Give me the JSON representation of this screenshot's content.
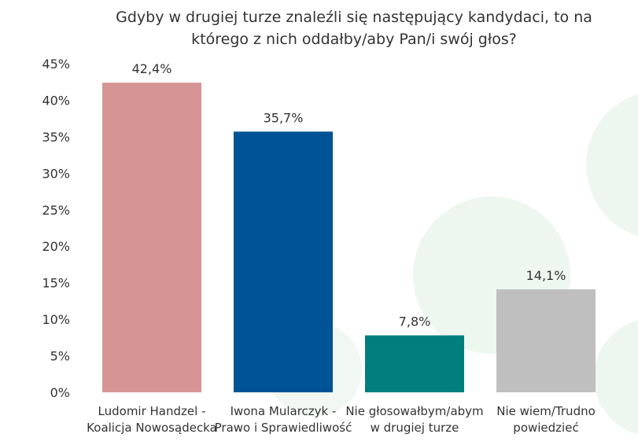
{
  "chart_data": {
    "type": "bar",
    "title": "Gdyby w drugiej turze znaleźli się następujący kandydaci, to na\nktórego z nich oddałby/aby Pan/i swój głos?",
    "categories": [
      [
        "Ludomir Handzel -",
        "Koalicja Nowosądecka"
      ],
      [
        "Iwona Mularczyk -",
        "Prawo i Sprawiedliwość"
      ],
      [
        "Nie głosowałbym/abym",
        "w drugiej turze"
      ],
      [
        "Nie wiem/Trudno",
        "powiedzieć"
      ]
    ],
    "values": [
      42.4,
      35.7,
      7.8,
      14.1
    ],
    "data_labels": [
      "42,4%",
      "35,7%",
      "7,8%",
      "14,1%"
    ],
    "colors": [
      "#d69595",
      "#005394",
      "#007f7f",
      "#bfbfbf"
    ],
    "ylim": [
      0,
      45
    ],
    "yticks": [
      "0%",
      "5%",
      "10%",
      "15%",
      "20%",
      "25%",
      "30%",
      "35%",
      "40%",
      "45%"
    ],
    "grid": false,
    "legend": "none"
  }
}
